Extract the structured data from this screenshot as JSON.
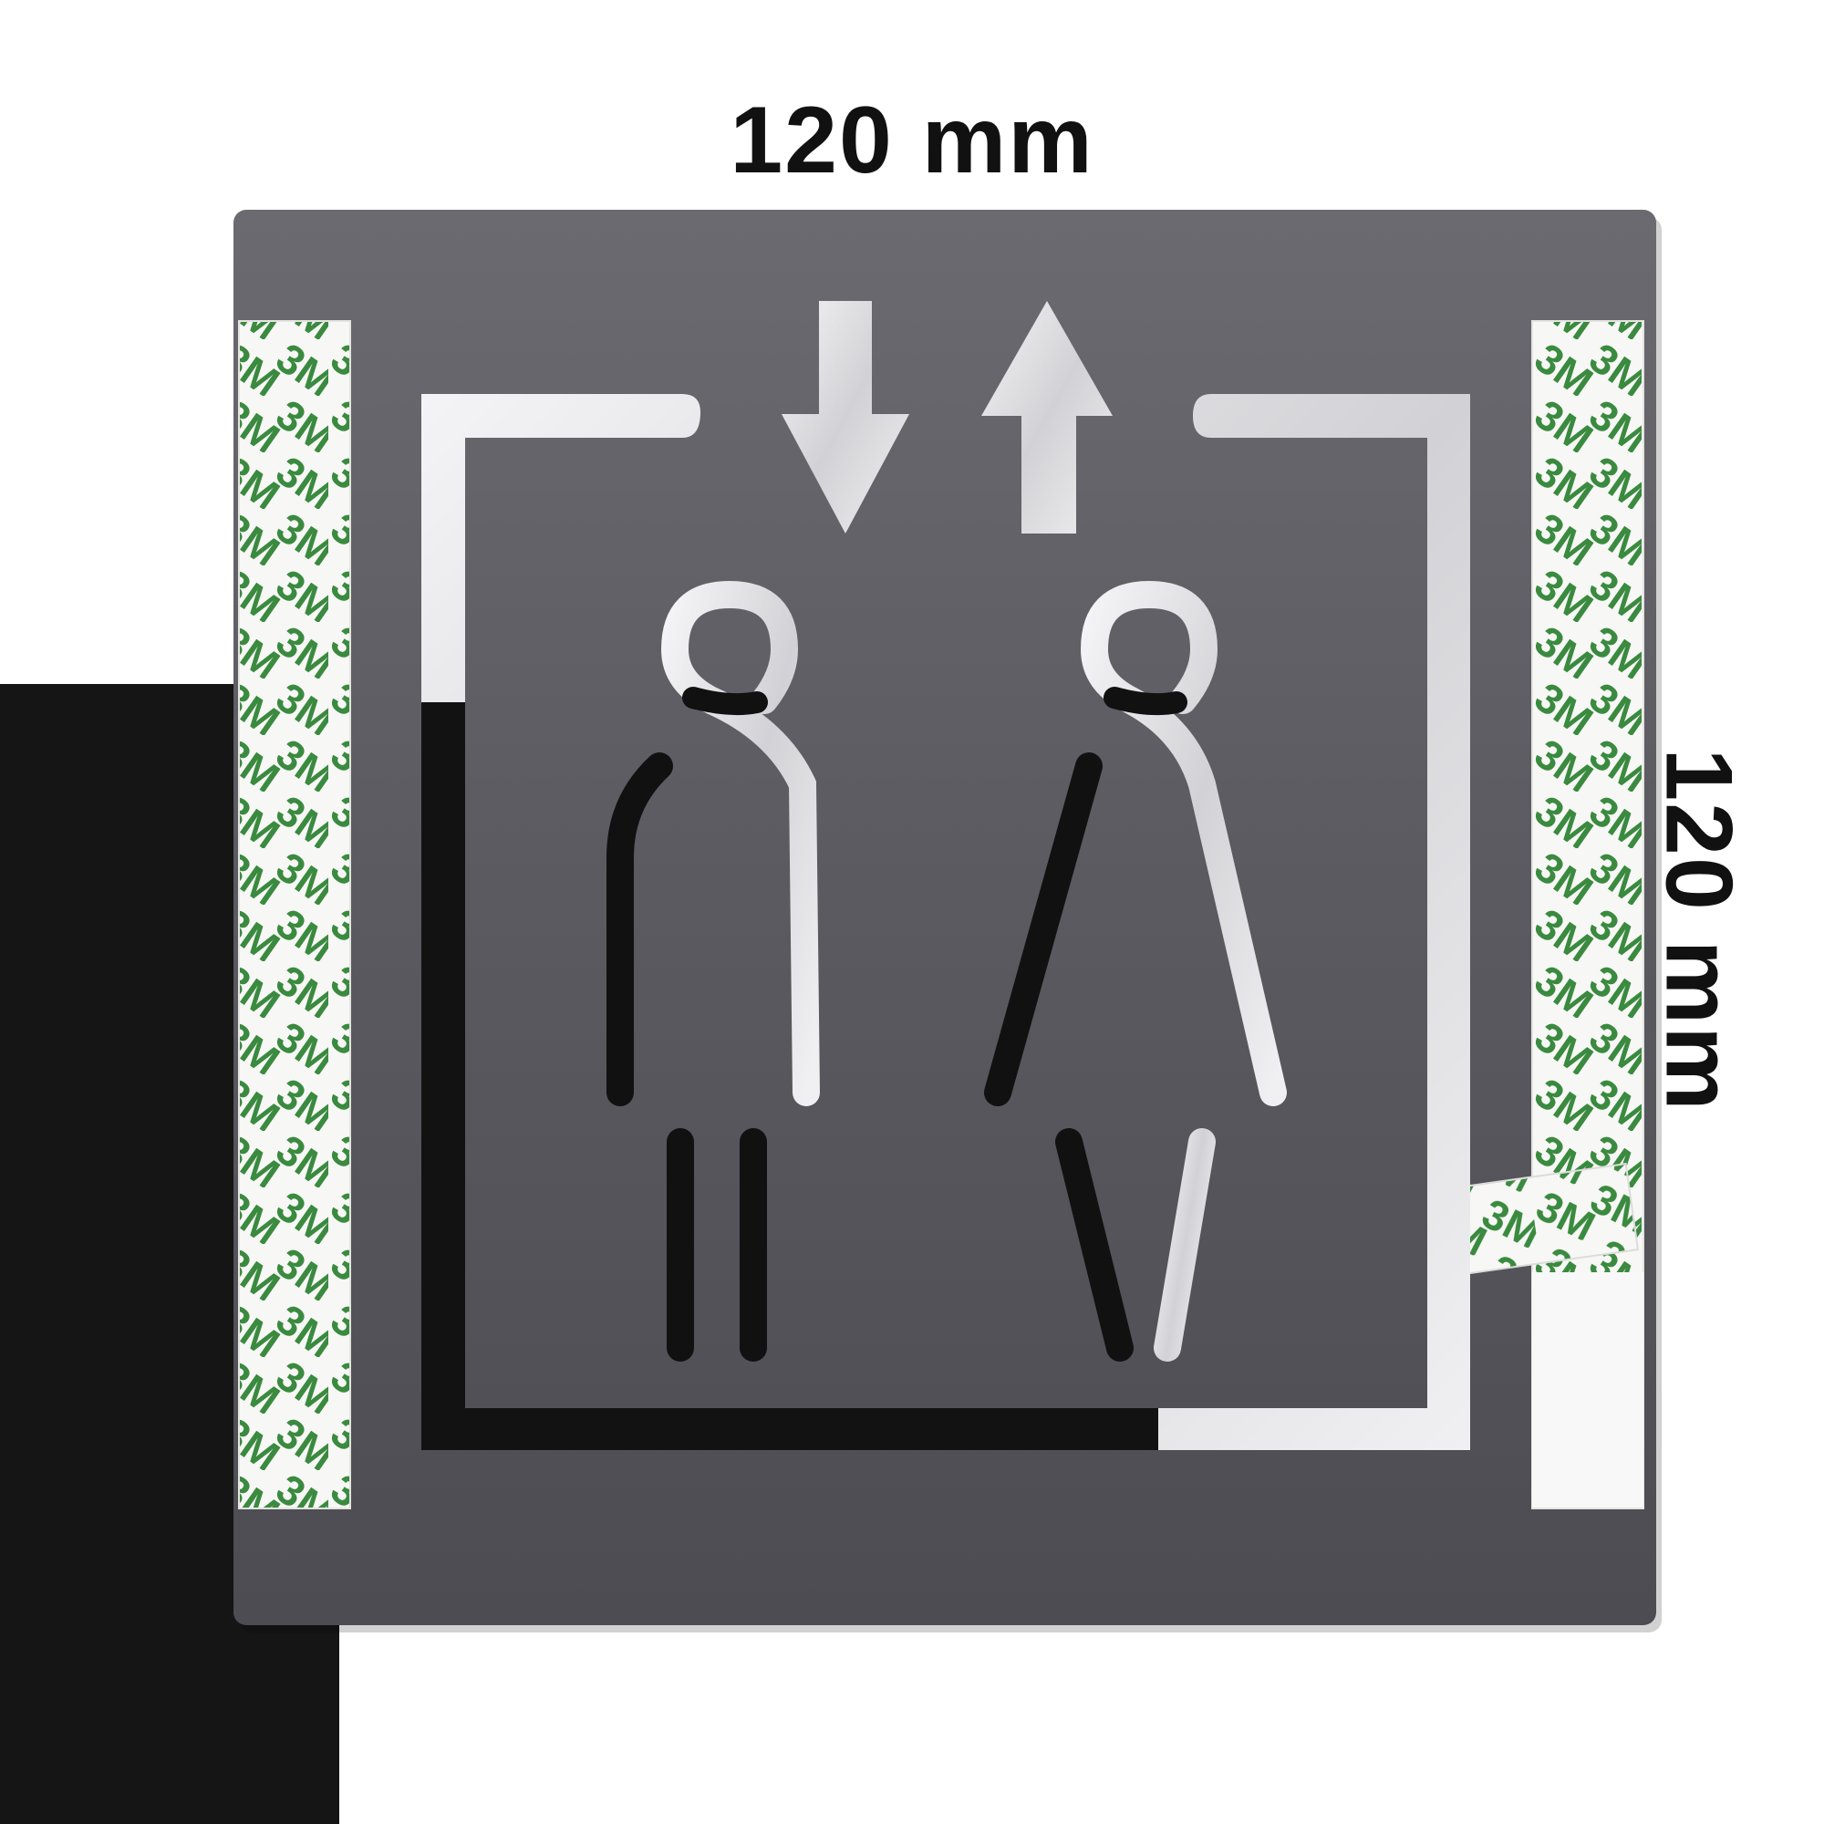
{
  "dimensions": {
    "width_label": "120 mm",
    "height_label": "120 mm"
  },
  "sign": {
    "subject": "elevator pictogram sign",
    "icons": [
      "arrow-down-icon",
      "arrow-up-icon",
      "man-icon",
      "woman-icon"
    ],
    "colors": {
      "plate": "#5a5a60",
      "mirror": "#e9e9ec",
      "tape_green": "#3a8a3f"
    }
  },
  "adhesive_tape": {
    "brand_mark": "3M"
  }
}
